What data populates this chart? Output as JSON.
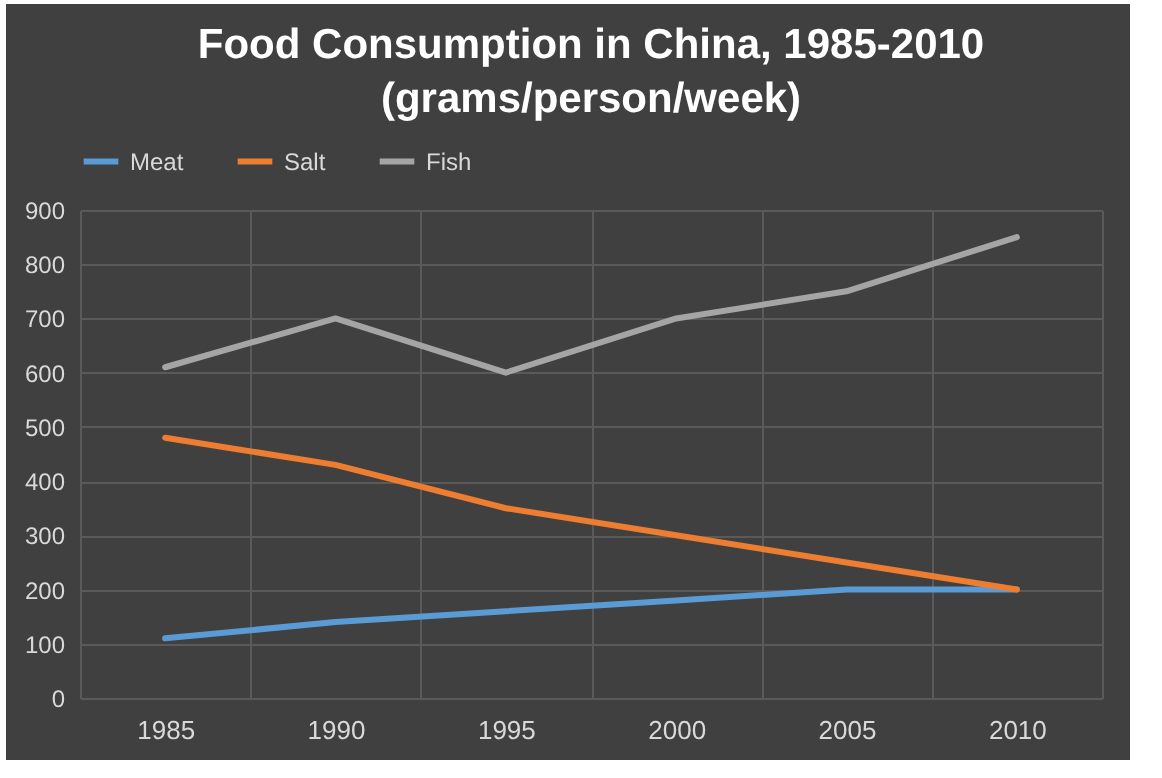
{
  "chart_data": {
    "type": "line",
    "title": "Food Consumption in China, 1985-2010",
    "subtitle": "(grams/person/week)",
    "categories": [
      "1985",
      "1990",
      "1995",
      "2000",
      "2005",
      "2010"
    ],
    "series": [
      {
        "name": "Meat",
        "color": "#5b9bd5",
        "values": [
          110,
          140,
          160,
          180,
          200,
          200
        ]
      },
      {
        "name": "Salt",
        "color": "#ed7d31",
        "values": [
          480,
          430,
          350,
          300,
          250,
          200
        ]
      },
      {
        "name": "Fish",
        "color": "#a5a5a5",
        "values": [
          610,
          700,
          600,
          700,
          750,
          850
        ]
      }
    ],
    "ylim": [
      0,
      900
    ],
    "yticks": [
      0,
      100,
      200,
      300,
      400,
      500,
      600,
      700,
      800,
      900
    ],
    "grid": true,
    "legend": "top",
    "line_style": "solid",
    "marker": "none"
  }
}
